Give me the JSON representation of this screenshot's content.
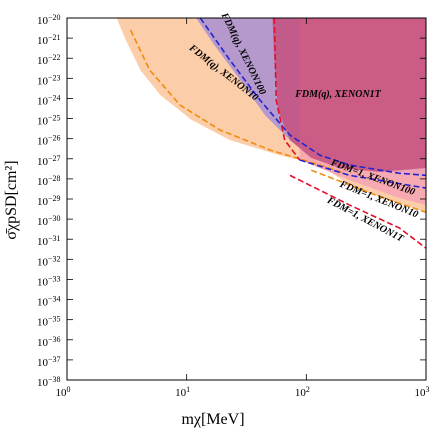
{
  "chart_data": {
    "type": "area",
    "xlabel": "mχ[MeV]",
    "ylabel": "σ̄χpSD[cm²]",
    "xscale": "log",
    "yscale": "log",
    "xlim": [
      1,
      1000
    ],
    "ylim": [
      1e-38,
      1e-20
    ],
    "xticks": [
      {
        "value": 1,
        "label": "100"
      },
      {
        "value": 10,
        "label": "101"
      },
      {
        "value": 100,
        "label": "102"
      },
      {
        "value": 1000,
        "label": "103"
      }
    ],
    "yticks": [
      {
        "value": 1e-38,
        "label": "10−38"
      },
      {
        "value": 1e-37,
        "label": "10−37"
      },
      {
        "value": 1e-36,
        "label": "10−36"
      },
      {
        "value": 1e-35,
        "label": "10−35"
      },
      {
        "value": 1e-34,
        "label": "10−34"
      },
      {
        "value": 1e-33,
        "label": "10−33"
      },
      {
        "value": 1e-32,
        "label": "10−32"
      },
      {
        "value": 1e-31,
        "label": "10−31"
      },
      {
        "value": 1e-30,
        "label": "10−30"
      },
      {
        "value": 1e-29,
        "label": "10−29"
      },
      {
        "value": 1e-28,
        "label": "10−28"
      },
      {
        "value": 1e-27,
        "label": "10−27"
      },
      {
        "value": 1e-26,
        "label": "10−26"
      },
      {
        "value": 1e-25,
        "label": "10−25"
      },
      {
        "value": 1e-24,
        "label": "10−24"
      },
      {
        "value": 1e-23,
        "label": "10−23"
      },
      {
        "value": 1e-22,
        "label": "10−22"
      },
      {
        "value": 1e-21,
        "label": "10−21"
      },
      {
        "value": 1e-20,
        "label": "10−20"
      }
    ],
    "areas": [
      {
        "color": "#fbc49a",
        "x": [
          2.6,
          3.1,
          4.1,
          6,
          11,
          23,
          60,
          130,
          230,
          410,
          1000
        ],
        "y": [
          1e-20,
          8e-22,
          2.6e-23,
          1.5e-24,
          8.5e-26,
          8.5e-27,
          1.5e-27,
          4.9e-28,
          5e-29,
          1.3e-29,
          2.2e-30
        ]
      },
      {
        "color": "#a98fd2",
        "x": [
          12,
          17,
          28,
          45,
          73,
          120,
          230,
          1000
        ],
        "y": [
          1e-20,
          4.6e-22,
          8.3e-24,
          1.5e-25,
          8.5e-27,
          1.1e-27,
          3.5e-28,
          1.5e-28
        ]
      },
      {
        "color": "#f7a3b4",
        "x": [
          88,
          230,
          600,
          1000
        ],
        "y": [
          8.7e-28,
          8.7e-29,
          1.1e-29,
          5e-30
        ]
      },
      {
        "color": "#c4507c",
        "x": [
          52,
          54,
          58,
          73,
          110,
          190,
          410,
          1000
        ],
        "y": [
          1e-20,
          8e-23,
          2.7e-25,
          8.5e-27,
          1.1e-27,
          3.5e-28,
          2.2e-28,
          3.5e-28
        ]
      }
    ],
    "lines": [
      {
        "color": "#f08c10",
        "x": [
          3.4,
          4.9,
          8.8,
          19,
          50,
          130,
          210
        ],
        "y": [
          2.5e-21,
          2.6e-23,
          4.7e-25,
          2.7e-26,
          2.7e-27,
          4.9e-28,
          1.9e-28
        ]
      },
      {
        "color": "#2424d0",
        "x": [
          13,
          23,
          41,
          73,
          130,
          230,
          600,
          1000
        ],
        "y": [
          1e-20,
          8e-23,
          8.3e-25,
          1.5e-26,
          1.5e-27,
          4.9e-28,
          1.9e-28,
          1.5e-28
        ]
      },
      {
        "color": "#e0102a",
        "x": [
          54,
          56,
          66,
          88
        ],
        "y": [
          1e-20,
          8.3e-25,
          8.5e-27,
          8.7e-28
        ]
      },
      {
        "color": "#2424d0",
        "x": [
          88,
          230,
          1000
        ],
        "y": [
          8.7e-28,
          1.5e-28,
          3.5e-29
        ]
      },
      {
        "color": "#f08c10",
        "x": [
          110,
          230,
          410,
          1000
        ],
        "y": [
          2.7e-28,
          5e-29,
          1.3e-29,
          2.2e-30
        ]
      },
      {
        "color": "#e0102a",
        "x": [
          73,
          230,
          600,
          1000
        ],
        "y": [
          1.5e-28,
          5e-30,
          3.6e-31,
          3.6e-32
        ]
      }
    ],
    "annotations": [
      {
        "text": "FDM(q), XENON10",
        "color": "#f08c10"
      },
      {
        "text": "FDM(q), XENON100",
        "color": "#2424d0"
      },
      {
        "text": "FDM(q), XENON1T",
        "color": "#e0102a"
      },
      {
        "text": "FDM=1, XENON100",
        "color": "#2424d0"
      },
      {
        "text": "FDM=1, XENON10",
        "color": "#f08c10"
      },
      {
        "text": "FDM=1, XENON1T",
        "color": "#e0102a"
      }
    ]
  }
}
